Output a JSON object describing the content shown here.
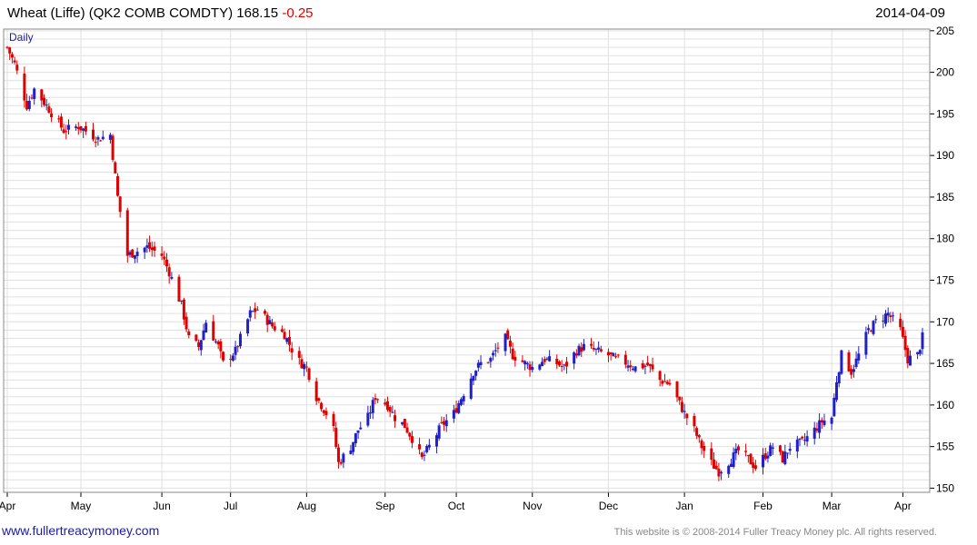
{
  "header": {
    "title": "Wheat (Liffe) (QK2 COMB COMDTY)",
    "last_price": "168.15",
    "change": "-0.25",
    "date": "2014-04-09"
  },
  "footer": {
    "site": "www.fullertreacymoney.com",
    "copyright": "This website is © 2008-2014 Fuller Treacy Money plc. All rights reserved."
  },
  "colors": {
    "up": "#2020c8",
    "down": "#e00000",
    "grid": "#e0e0e0",
    "axis": "#000000"
  },
  "chart_data": {
    "type": "candlestick",
    "period_label": "Daily",
    "x_start": "2013-04-01",
    "x_end": "2014-04-09",
    "x_tick_labels": [
      "Apr",
      "May",
      "Jun",
      "Jul",
      "Aug",
      "Sep",
      "Oct",
      "Nov",
      "Dec",
      "Jan",
      "Feb",
      "Mar",
      "Apr"
    ],
    "x_tick_dates": [
      "2013-04-01",
      "2013-05-01",
      "2013-06-03",
      "2013-07-01",
      "2013-08-01",
      "2013-09-02",
      "2013-10-01",
      "2013-11-01",
      "2013-12-02",
      "2014-01-02",
      "2014-02-03",
      "2014-03-03",
      "2014-04-01"
    ],
    "y_ticks": [
      150,
      155,
      160,
      165,
      170,
      175,
      180,
      185,
      190,
      195,
      200,
      205
    ],
    "ylim": [
      149.5,
      205.2
    ],
    "grid": true,
    "close_path": [
      [
        "2013-04-01",
        203.0
      ],
      [
        "2013-04-04",
        201.0
      ],
      [
        "2013-04-09",
        196.0
      ],
      [
        "2013-04-12",
        198.0
      ],
      [
        "2013-04-17",
        196.0
      ],
      [
        "2013-04-24",
        193.0
      ],
      [
        "2013-04-30",
        193.5
      ],
      [
        "2013-05-08",
        192.0
      ],
      [
        "2013-05-13",
        192.5
      ],
      [
        "2013-05-16",
        185.0
      ],
      [
        "2013-05-20",
        178.0
      ],
      [
        "2013-05-28",
        179.0
      ],
      [
        "2013-06-03",
        178.0
      ],
      [
        "2013-06-06",
        176.0
      ],
      [
        "2013-06-11",
        172.0
      ],
      [
        "2013-06-14",
        168.0
      ],
      [
        "2013-06-18",
        167.0
      ],
      [
        "2013-06-21",
        170.0
      ],
      [
        "2013-06-26",
        167.0
      ],
      [
        "2013-06-28",
        165.0
      ],
      [
        "2013-07-03",
        166.5
      ],
      [
        "2013-07-05",
        168.0
      ],
      [
        "2013-07-09",
        171.0
      ],
      [
        "2013-07-12",
        171.5
      ],
      [
        "2013-07-18",
        169.5
      ],
      [
        "2013-07-23",
        168.5
      ],
      [
        "2013-07-28",
        165.5
      ],
      [
        "2013-08-01",
        164.5
      ],
      [
        "2013-08-05",
        161.0
      ],
      [
        "2013-08-09",
        159.0
      ],
      [
        "2013-08-12",
        157.0
      ],
      [
        "2013-08-14",
        153.0
      ],
      [
        "2013-08-19",
        155.0
      ],
      [
        "2013-08-22",
        157.0
      ],
      [
        "2013-08-26",
        158.5
      ],
      [
        "2013-08-29",
        161.0
      ],
      [
        "2013-09-03",
        160.0
      ],
      [
        "2013-09-06",
        158.5
      ],
      [
        "2013-09-10",
        157.5
      ],
      [
        "2013-09-13",
        156.0
      ],
      [
        "2013-09-17",
        153.5
      ],
      [
        "2013-09-20",
        155.0
      ],
      [
        "2013-09-25",
        157.5
      ],
      [
        "2013-09-30",
        159.0
      ],
      [
        "2013-10-04",
        161.5
      ],
      [
        "2013-10-08",
        164.0
      ],
      [
        "2013-10-11",
        165.0
      ],
      [
        "2013-10-15",
        165.5
      ],
      [
        "2013-10-18",
        167.0
      ],
      [
        "2013-10-21",
        168.0
      ],
      [
        "2013-10-24",
        166.0
      ],
      [
        "2013-10-29",
        165.0
      ],
      [
        "2013-11-01",
        164.5
      ],
      [
        "2013-11-06",
        165.5
      ],
      [
        "2013-11-11",
        165.0
      ],
      [
        "2013-11-14",
        164.5
      ],
      [
        "2013-11-19",
        166.5
      ],
      [
        "2013-11-22",
        167.0
      ],
      [
        "2013-11-27",
        166.5
      ],
      [
        "2013-12-02",
        166.0
      ],
      [
        "2013-12-05",
        165.5
      ],
      [
        "2013-12-10",
        165.0
      ],
      [
        "2013-12-13",
        164.5
      ],
      [
        "2013-12-18",
        164.8
      ],
      [
        "2013-12-23",
        163.0
      ],
      [
        "2013-12-27",
        162.5
      ],
      [
        "2014-01-02",
        159.0
      ],
      [
        "2014-01-06",
        157.0
      ],
      [
        "2014-01-09",
        155.0
      ],
      [
        "2014-01-13",
        153.0
      ],
      [
        "2014-01-16",
        152.0
      ],
      [
        "2014-01-21",
        153.5
      ],
      [
        "2014-01-24",
        154.5
      ],
      [
        "2014-01-28",
        153.5
      ],
      [
        "2014-01-31",
        152.5
      ],
      [
        "2014-02-04",
        154.0
      ],
      [
        "2014-02-07",
        155.0
      ],
      [
        "2014-02-11",
        153.5
      ],
      [
        "2014-02-14",
        155.0
      ],
      [
        "2014-02-19",
        155.5
      ],
      [
        "2014-02-24",
        157.0
      ],
      [
        "2014-02-27",
        158.0
      ],
      [
        "2014-03-03",
        158.5
      ],
      [
        "2014-03-05",
        163.0
      ],
      [
        "2014-03-07",
        166.0
      ],
      [
        "2014-03-11",
        164.0
      ],
      [
        "2014-03-14",
        166.0
      ],
      [
        "2014-03-18",
        169.0
      ],
      [
        "2014-03-21",
        170.0
      ],
      [
        "2014-03-26",
        171.0
      ],
      [
        "2014-03-31",
        169.0
      ],
      [
        "2014-04-03",
        165.5
      ],
      [
        "2014-04-07",
        166.0
      ],
      [
        "2014-04-09",
        168.15
      ]
    ]
  }
}
